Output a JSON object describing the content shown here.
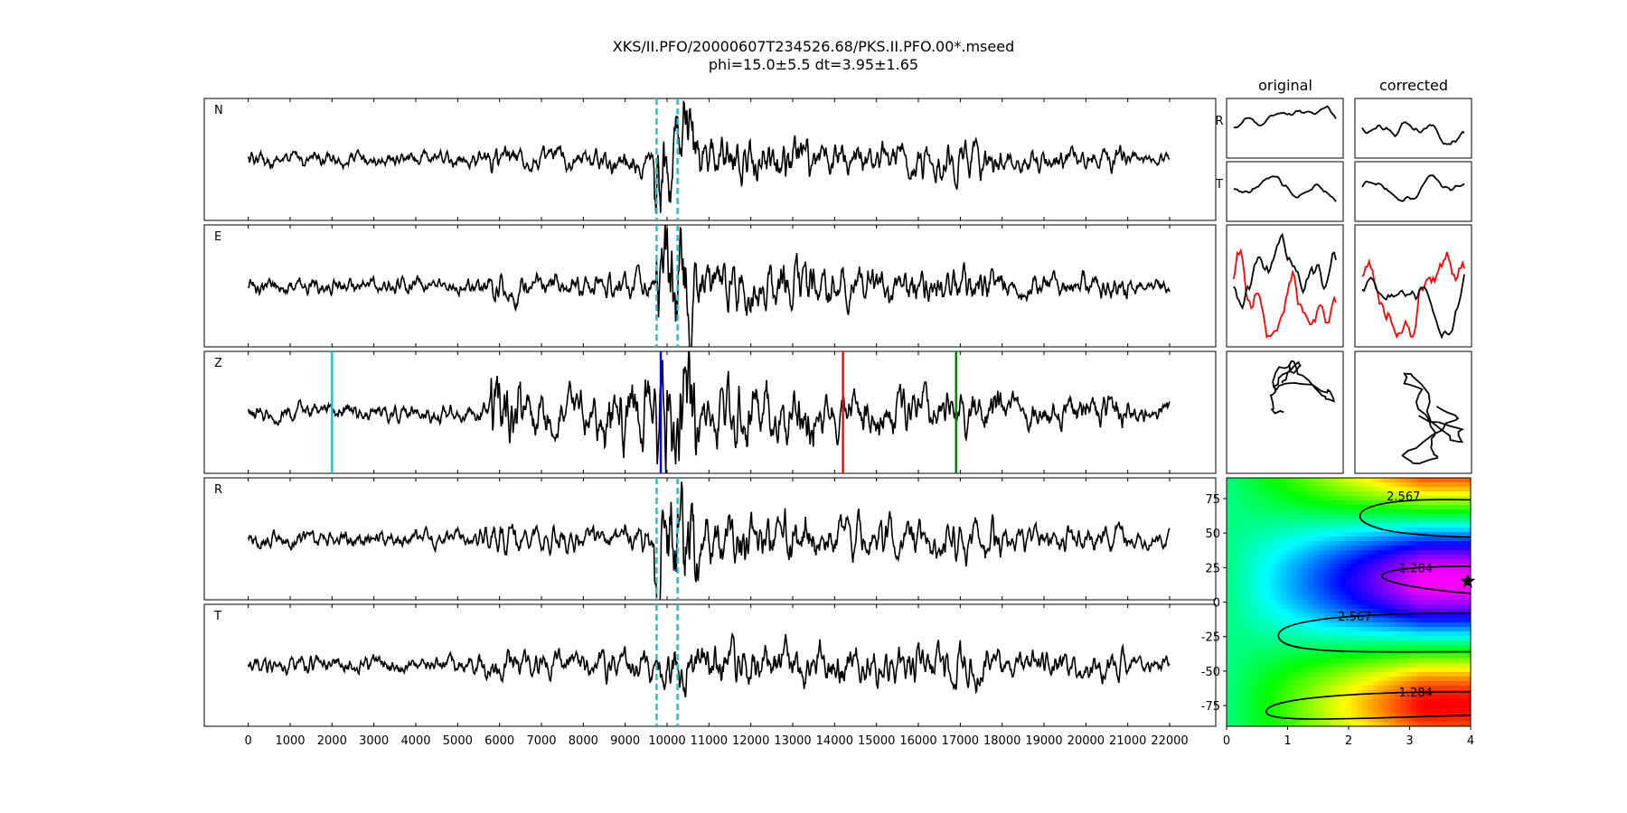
{
  "title": "XKS/II.PFO/20000607T234526.68/PKS.II.PFO.00*.mseed",
  "subtitle": "phi=15.0±5.5 dt=3.95±1.65",
  "chart_data": [
    {
      "type": "line",
      "panels": [
        "N",
        "E",
        "Z",
        "R",
        "T"
      ],
      "x_ticks": [
        0,
        1000,
        2000,
        3000,
        4000,
        5000,
        6000,
        7000,
        8000,
        9000,
        10000,
        11000,
        12000,
        13000,
        14000,
        15000,
        16000,
        17000,
        18000,
        19000,
        20000,
        21000,
        22000
      ],
      "xlim": [
        -1050,
        23100
      ],
      "trace_x_range": [
        0,
        22000
      ],
      "window_markers": [
        9750,
        10250
      ],
      "window_marker_color": "#17becf",
      "phase_markers": [
        {
          "x": 2000,
          "color": "#17becf"
        },
        {
          "x": 9850,
          "color": "#0000ff"
        },
        {
          "x": 14200,
          "color": "#ff0000"
        },
        {
          "x": 16900,
          "color": "#008000"
        }
      ]
    },
    {
      "type": "line",
      "columns": [
        "original",
        "corrected"
      ],
      "row_labels": [
        "R",
        "T"
      ],
      "overlay_colors": [
        "#ff0000",
        "#000000"
      ]
    },
    {
      "type": "heatmap",
      "xlim": [
        0,
        4
      ],
      "ylim": [
        -90,
        90
      ],
      "x_ticks": [
        0,
        1,
        2,
        3,
        4
      ],
      "y_ticks": [
        75,
        50,
        25,
        0,
        -25,
        -50,
        -75
      ],
      "contour_labels": [
        {
          "text": "2.567",
          "x": 2.9,
          "y": 77
        },
        {
          "text": "1.284",
          "x": 3.1,
          "y": 25
        },
        {
          "text": "2.567",
          "x": 2.1,
          "y": -10
        },
        {
          "text": "1.284",
          "x": 3.1,
          "y": -65
        }
      ],
      "best_fit": {
        "dt": 3.95,
        "phi": 15.0
      },
      "colormap": "hsv"
    }
  ]
}
